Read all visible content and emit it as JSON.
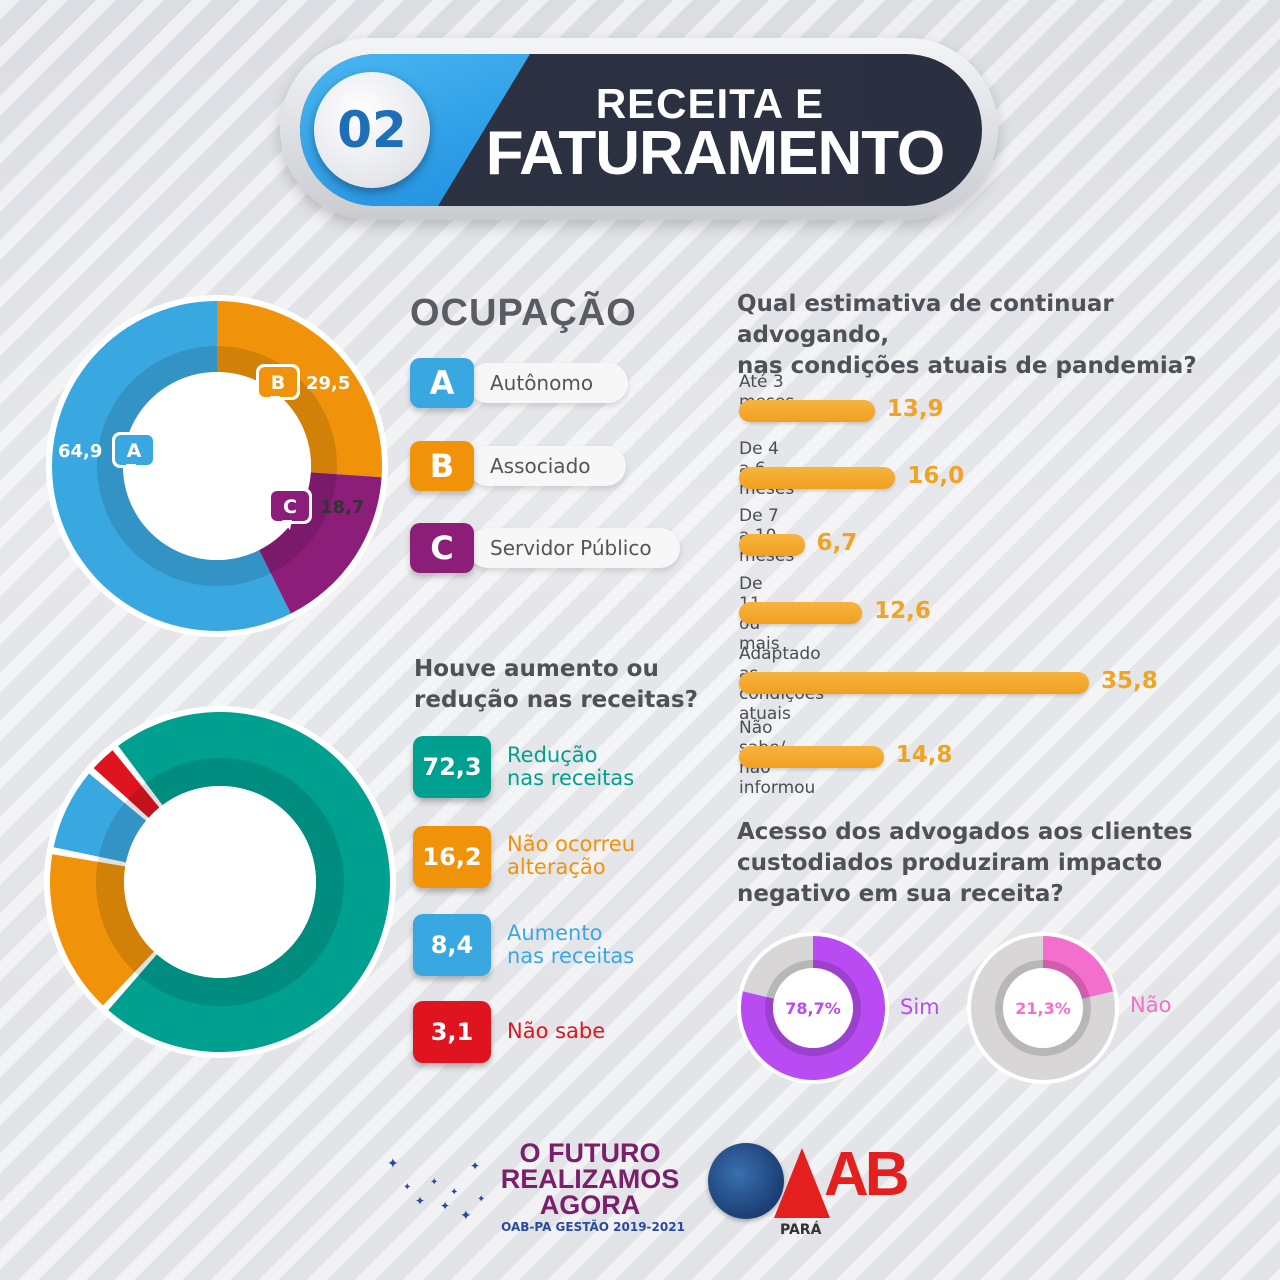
{
  "header": {
    "number": "02",
    "title_line1": "RECEITA E",
    "title_line2": "FATURAMENTO"
  },
  "colors": {
    "a": "#3aa8e0",
    "b": "#f0930a",
    "c": "#8c1e7a",
    "teal": "#00a091",
    "red": "#e0141e",
    "purple": "#b84cf2",
    "pink": "#f36fcb",
    "bar": "#f4ab2f"
  },
  "chart_data": [
    {
      "type": "pie",
      "title": "OCUPAÇÃO",
      "slices": [
        {
          "letter": "A",
          "name": "Autônomo",
          "value": 64.9,
          "label": "64,9"
        },
        {
          "letter": "B",
          "name": "Associado",
          "value": 29.5,
          "label": "29,5"
        },
        {
          "letter": "C",
          "name": "Servidor Público",
          "value": 18.7,
          "label": "18,7"
        }
      ]
    },
    {
      "type": "pie",
      "title": "Houve aumento ou redução nas receitas?",
      "slices": [
        {
          "name": "Redução nas receitas",
          "line1": "Redução",
          "line2": "nas receitas",
          "value": 72.3,
          "label": "72,3"
        },
        {
          "name": "Não ocorreu alteração",
          "line1": "Não ocorreu",
          "line2": "alteração",
          "value": 16.2,
          "label": "16,2"
        },
        {
          "name": "Aumento nas receitas",
          "line1": "Aumento",
          "line2": "nas receitas",
          "value": 8.4,
          "label": "8,4"
        },
        {
          "name": "Não sabe",
          "line1": "Não sabe",
          "line2": "",
          "value": 3.1,
          "label": "3,1"
        }
      ]
    },
    {
      "type": "bar",
      "title_line1": "Qual estimativa de continuar advogando,",
      "title_line2": "nas condições atuais de pandemia?",
      "categories": [
        "Até 3 meses",
        "De 4 a 6 meses",
        "De 7 a 10 meses",
        "De 11 ou mais",
        "Adaptado as condições atuais",
        "Não sabe/ não informou"
      ],
      "values": [
        13.9,
        16.0,
        6.7,
        12.6,
        35.8,
        14.8
      ],
      "labels": [
        "13,9",
        "16,0",
        "6,7",
        "12,6",
        "35,8",
        "14,8"
      ],
      "xlim": [
        0,
        35.8
      ]
    },
    {
      "type": "pie",
      "title_line1": "Acesso dos advogados aos clientes",
      "title_line2": "custodiados produziram impacto",
      "title_line3": "negativo em sua receita?",
      "slices": [
        {
          "name": "Sim",
          "value": 78.7,
          "label": "78,7%"
        },
        {
          "name": "Não",
          "value": 21.3,
          "label": "21,3%"
        }
      ]
    }
  ],
  "footer": {
    "slogan_line1": "O FUTURO",
    "slogan_line2": "REALIZAMOS",
    "slogan_line3": "AGORA",
    "slogan_sub": "OAB-PA GESTÃO 2019-2021",
    "logo_text": "AB",
    "logo_sub": "PARÁ"
  }
}
